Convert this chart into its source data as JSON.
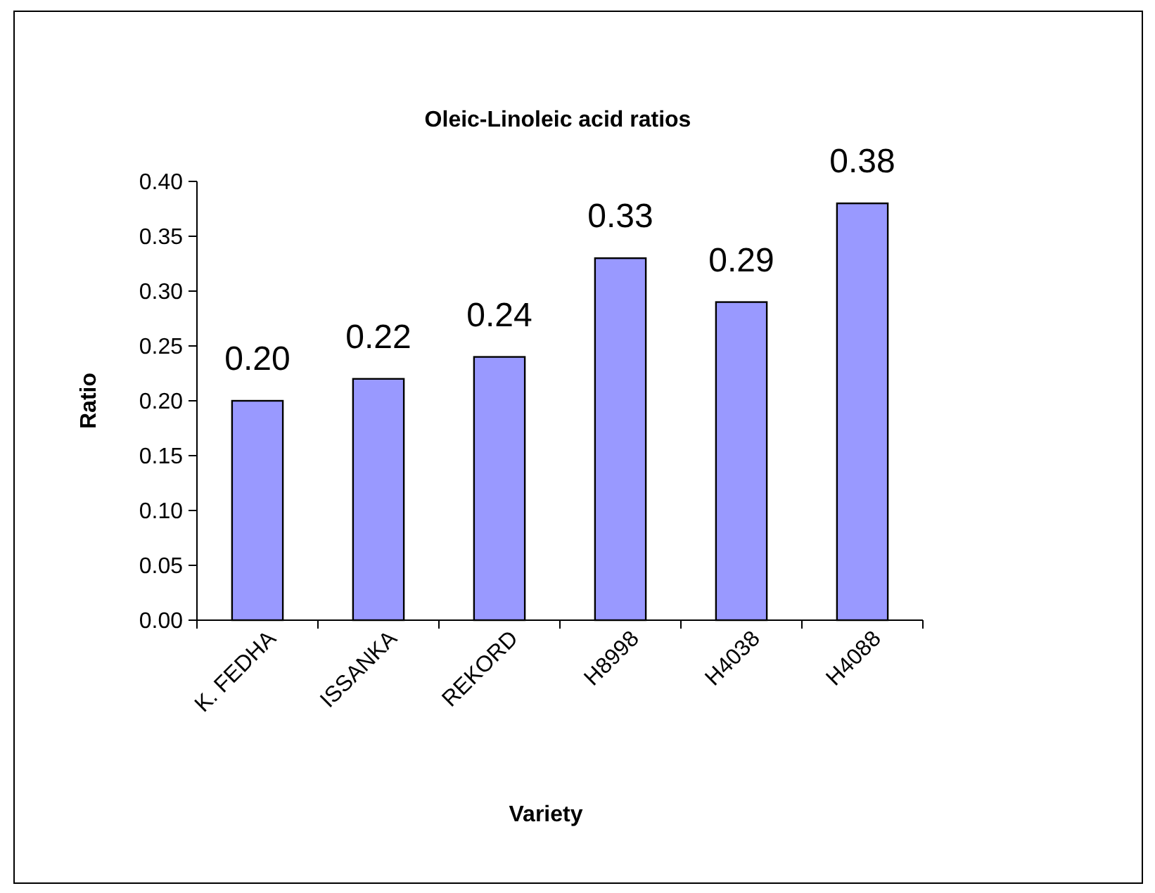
{
  "chart_data": {
    "type": "bar",
    "title": "Oleic-Linoleic acid ratios",
    "xlabel": "Variety",
    "ylabel": "Ratio",
    "categories": [
      "K. FEDHA",
      "ISSANKA",
      "REKORD",
      "H8998",
      "H4038",
      "H4088"
    ],
    "values": [
      0.2,
      0.22,
      0.24,
      0.33,
      0.29,
      0.38
    ],
    "value_labels": [
      "0.20",
      "0.22",
      "0.24",
      "0.33",
      "0.29",
      "0.38"
    ],
    "color": "#9999ff",
    "ylim": [
      0,
      0.4
    ],
    "yticks": [
      {
        "value": 0,
        "label": "0.00"
      },
      {
        "value": 0.05,
        "label": "0.05"
      },
      {
        "value": 0.1,
        "label": "0.10"
      },
      {
        "value": 0.15,
        "label": "0.15"
      },
      {
        "value": 0.2,
        "label": "0.20"
      },
      {
        "value": 0.25,
        "label": "0.25"
      },
      {
        "value": 0.3,
        "label": "0.30"
      },
      {
        "value": 0.35,
        "label": "0.35"
      },
      {
        "value": 0.4,
        "label": "0.40"
      }
    ],
    "grid": false
  }
}
